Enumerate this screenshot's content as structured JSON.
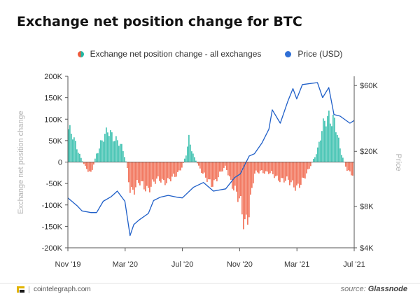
{
  "title": "Exchange net position change for BTC",
  "footer": {
    "brand": "cointelegraph.com",
    "source_prefix": "source:",
    "source_name": "Glassnode"
  },
  "chart_data": {
    "type": "bar+line",
    "title": "Exchange net position change for BTC",
    "legend_position": "top-center",
    "grid": false,
    "colors": {
      "positive": "#20b8a4",
      "negative": "#ef5a3c",
      "price": "#1f5fc8"
    },
    "x_axis": {
      "label": "",
      "range": [
        "2019-11",
        "2021-07"
      ],
      "tick_labels": [
        "Nov '19",
        "Mar '20",
        "Jul '20",
        "Nov '20",
        "Mar '21",
        "Jul '21"
      ]
    },
    "y_left": {
      "label": "Exchange net position change",
      "range": [
        -200000,
        200000
      ],
      "tick_labels": [
        "200K",
        "150K",
        "100K",
        "50K",
        "0",
        "-50K",
        "-100K",
        "-150K",
        "-200K"
      ],
      "tick_values": [
        200000,
        150000,
        100000,
        50000,
        0,
        -50000,
        -100000,
        -150000,
        -200000
      ]
    },
    "y_right": {
      "label": "Price",
      "scale": "log",
      "range": [
        4000,
        70000
      ],
      "tick_labels": [
        "$60K",
        "$20K",
        "$8K",
        "$4K"
      ],
      "tick_values": [
        60000,
        20000,
        8000,
        4000
      ]
    },
    "series": [
      {
        "name": "Exchange net position change - all exchanges",
        "axis": "left",
        "type": "bar",
        "points": [
          [
            "2019-11-01",
            80000
          ],
          [
            "2019-11-10",
            60000
          ],
          [
            "2019-11-20",
            35000
          ],
          [
            "2019-12-01",
            5000
          ],
          [
            "2019-12-10",
            -15000
          ],
          [
            "2019-12-20",
            -30000
          ],
          [
            "2020-01-01",
            20000
          ],
          [
            "2020-01-10",
            45000
          ],
          [
            "2020-01-20",
            60000
          ],
          [
            "2020-01-25",
            70000
          ],
          [
            "2020-02-05",
            65000
          ],
          [
            "2020-02-15",
            50000
          ],
          [
            "2020-02-25",
            30000
          ],
          [
            "2020-03-05",
            -5000
          ],
          [
            "2020-03-12",
            -60000
          ],
          [
            "2020-03-20",
            -65000
          ],
          [
            "2020-04-01",
            -50000
          ],
          [
            "2020-04-10",
            -55000
          ],
          [
            "2020-04-20",
            -60000
          ],
          [
            "2020-05-01",
            -50000
          ],
          [
            "2020-05-15",
            -40000
          ],
          [
            "2020-06-01",
            -45000
          ],
          [
            "2020-06-15",
            -35000
          ],
          [
            "2020-07-01",
            -10000
          ],
          [
            "2020-07-10",
            20000
          ],
          [
            "2020-07-15",
            50000
          ],
          [
            "2020-07-25",
            15000
          ],
          [
            "2020-08-10",
            -20000
          ],
          [
            "2020-08-20",
            -40000
          ],
          [
            "2020-09-01",
            -50000
          ],
          [
            "2020-09-15",
            -35000
          ],
          [
            "2020-10-01",
            -10000
          ],
          [
            "2020-10-15",
            -50000
          ],
          [
            "2020-11-01",
            -100000
          ],
          [
            "2020-11-10",
            -140000
          ],
          [
            "2020-11-20",
            -110000
          ],
          [
            "2020-12-01",
            -30000
          ],
          [
            "2020-12-15",
            -20000
          ],
          [
            "2021-01-01",
            -25000
          ],
          [
            "2021-01-15",
            -35000
          ],
          [
            "2021-02-01",
            -40000
          ],
          [
            "2021-02-15",
            -50000
          ],
          [
            "2021-03-01",
            -55000
          ],
          [
            "2021-03-15",
            -45000
          ],
          [
            "2021-04-01",
            -5000
          ],
          [
            "2021-04-15",
            30000
          ],
          [
            "2021-05-01",
            100000
          ],
          [
            "2021-05-10",
            115000
          ],
          [
            "2021-05-20",
            95000
          ],
          [
            "2021-06-01",
            30000
          ],
          [
            "2021-06-15",
            -15000
          ],
          [
            "2021-07-01",
            -35000
          ]
        ]
      },
      {
        "name": "Price (USD)",
        "axis": "right",
        "type": "line",
        "points": [
          [
            "2019-11-01",
            9200
          ],
          [
            "2019-11-20",
            8100
          ],
          [
            "2019-12-01",
            7400
          ],
          [
            "2019-12-20",
            7200
          ],
          [
            "2020-01-01",
            7200
          ],
          [
            "2020-01-15",
            8700
          ],
          [
            "2020-02-01",
            9400
          ],
          [
            "2020-02-14",
            10300
          ],
          [
            "2020-03-01",
            8700
          ],
          [
            "2020-03-12",
            4900
          ],
          [
            "2020-03-20",
            5900
          ],
          [
            "2020-04-01",
            6400
          ],
          [
            "2020-04-20",
            7100
          ],
          [
            "2020-05-01",
            8800
          ],
          [
            "2020-05-15",
            9300
          ],
          [
            "2020-06-01",
            9600
          ],
          [
            "2020-06-20",
            9300
          ],
          [
            "2020-07-01",
            9200
          ],
          [
            "2020-07-25",
            11000
          ],
          [
            "2020-08-15",
            11900
          ],
          [
            "2020-09-05",
            10300
          ],
          [
            "2020-10-01",
            10700
          ],
          [
            "2020-10-20",
            12900
          ],
          [
            "2020-11-01",
            13700
          ],
          [
            "2020-11-20",
            18500
          ],
          [
            "2020-12-01",
            19200
          ],
          [
            "2020-12-17",
            23000
          ],
          [
            "2021-01-01",
            29000
          ],
          [
            "2021-01-08",
            40000
          ],
          [
            "2021-01-25",
            32000
          ],
          [
            "2021-02-10",
            46000
          ],
          [
            "2021-02-21",
            57000
          ],
          [
            "2021-03-01",
            48000
          ],
          [
            "2021-03-13",
            61000
          ],
          [
            "2021-04-14",
            63000
          ],
          [
            "2021-04-25",
            49000
          ],
          [
            "2021-05-08",
            58000
          ],
          [
            "2021-05-19",
            37000
          ],
          [
            "2021-06-01",
            36000
          ],
          [
            "2021-06-22",
            32000
          ],
          [
            "2021-07-01",
            33500
          ]
        ]
      }
    ]
  }
}
